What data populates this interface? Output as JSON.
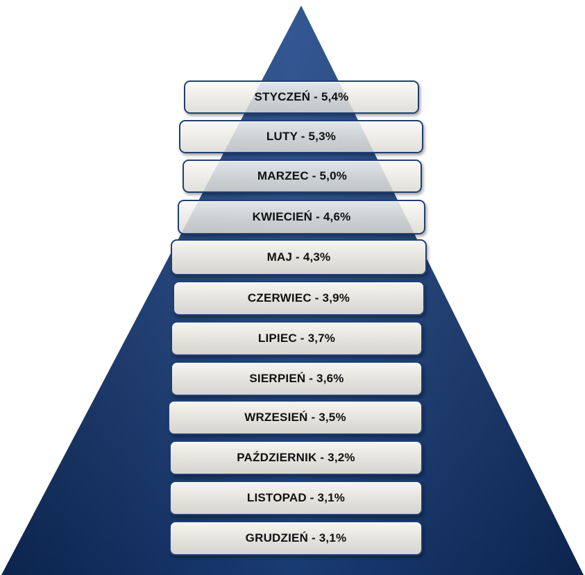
{
  "diagram": {
    "colors": {
      "pyramid_dark": "#0f2c5e",
      "pyramid_light": "#2d5aa0",
      "level_fill": "#e4e2dc",
      "level_border": "#1f3f73",
      "label_text": "#111111"
    },
    "levels": [
      {
        "label": "STYCZEŃ - 5,4%",
        "month": "STYCZEŃ",
        "value": 5.4
      },
      {
        "label": "LUTY - 5,3%",
        "month": "LUTY",
        "value": 5.3
      },
      {
        "label": "MARZEC - 5,0%",
        "month": "MARZEC",
        "value": 5.0
      },
      {
        "label": "KWIECIEŃ - 4,6%",
        "month": "KWIECIEŃ",
        "value": 4.6
      },
      {
        "label": "MAJ - 4,3%",
        "month": "MAJ",
        "value": 4.3
      },
      {
        "label": "CZERWIEC - 3,9%",
        "month": "CZERWIEC",
        "value": 3.9
      },
      {
        "label": "LIPIEC - 3,7%",
        "month": "LIPIEC",
        "value": 3.7
      },
      {
        "label": "SIERPIEŃ - 3,6%",
        "month": "SIERPIEŃ",
        "value": 3.6
      },
      {
        "label": "WRZESIEŃ - 3,5%",
        "month": "WRZESIEŃ",
        "value": 3.5
      },
      {
        "label": "PAŹDZIERNIK - 3,2%",
        "month": "PAŹDZIERNIK",
        "value": 3.2
      },
      {
        "label": "LISTOPAD - 3,1%",
        "month": "LISTOPAD",
        "value": 3.1
      },
      {
        "label": "GRUDZIEŃ - 3,1%",
        "month": "GRUDZIEŃ",
        "value": 3.1
      }
    ]
  }
}
